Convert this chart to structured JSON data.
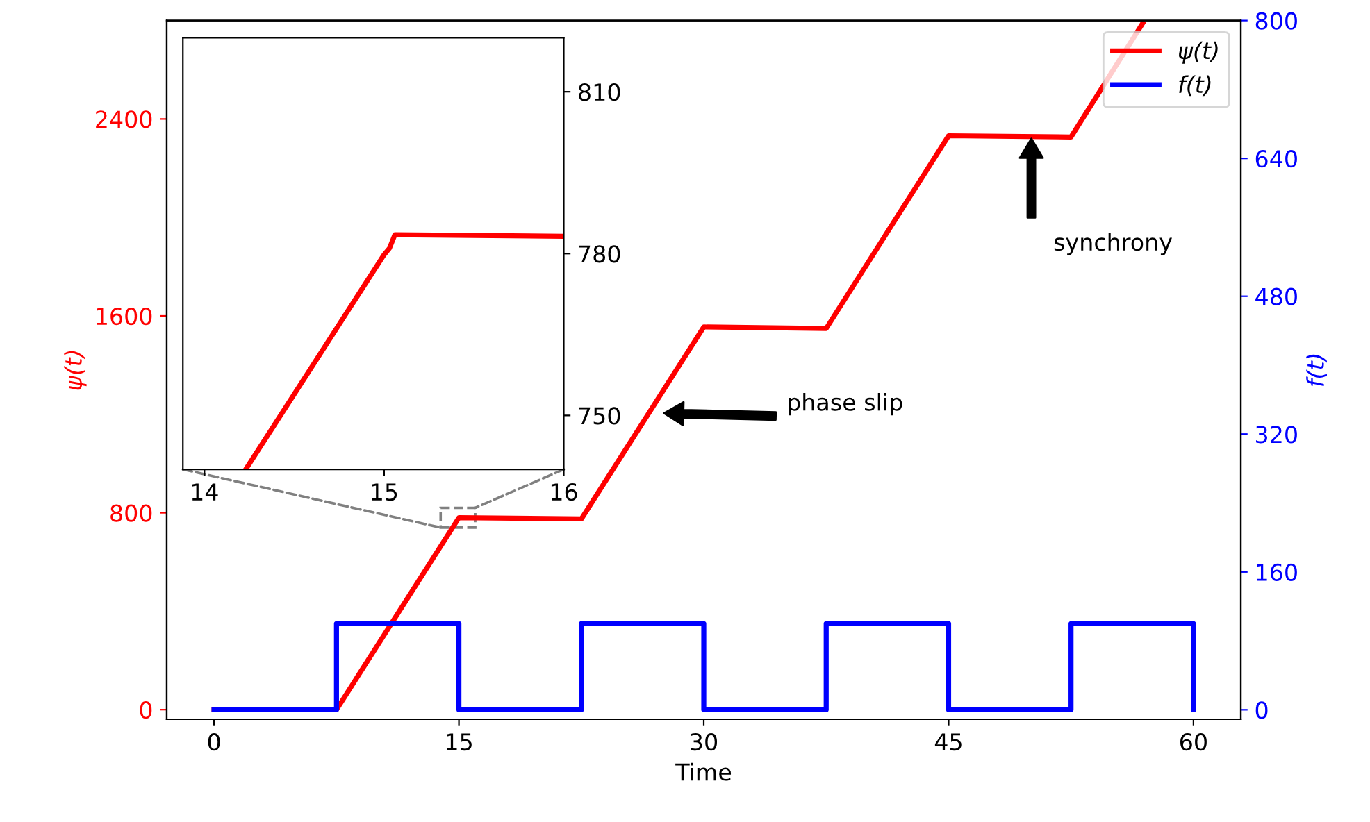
{
  "chart_data": [
    {
      "type": "line",
      "xlabel": "Time",
      "ylabel": "ψ(t)",
      "y2label": "f(t)",
      "xlim": [
        -2.9,
        62.9
      ],
      "xticks": [
        0,
        15,
        30,
        45,
        60
      ],
      "ylim": [
        -39,
        2800
      ],
      "yticks": [
        0,
        800,
        1600,
        2400
      ],
      "y2lim": [
        -11,
        800
      ],
      "y2ticks": [
        0,
        160,
        320,
        480,
        640,
        800
      ],
      "legend": "top right",
      "grid": false,
      "series": [
        {
          "name": "ψ(t)",
          "color": "#ff0000",
          "x": [
            0,
            7.5,
            15,
            22.5,
            30,
            37.5,
            45,
            52.5,
            56.9
          ],
          "values": [
            0,
            0,
            780,
            775,
            1555,
            1549,
            2332,
            2327,
            2790
          ]
        },
        {
          "name": "f(t)",
          "color": "#0000ff",
          "type": "step",
          "axis": "y2",
          "x": [
            0,
            7.5,
            15,
            22.5,
            30,
            37.5,
            45,
            52.5,
            60
          ],
          "values": [
            0,
            100,
            0,
            100,
            0,
            100,
            0,
            100,
            0
          ]
        }
      ],
      "annotations": [
        "phase slip",
        "synchrony"
      ]
    },
    {
      "type": "line",
      "xlim": [
        13.88,
        16
      ],
      "xticks": [
        14,
        15,
        16
      ],
      "ylim": [
        740,
        820
      ],
      "yticks": [
        750,
        780,
        810
      ],
      "grid": false,
      "series": [
        {
          "color": "#ff0000",
          "x": [
            14.23,
            15.0,
            15.03,
            15.06,
            16
          ],
          "values": [
            740,
            779.8,
            781,
            783.5,
            783.2
          ]
        }
      ]
    }
  ]
}
